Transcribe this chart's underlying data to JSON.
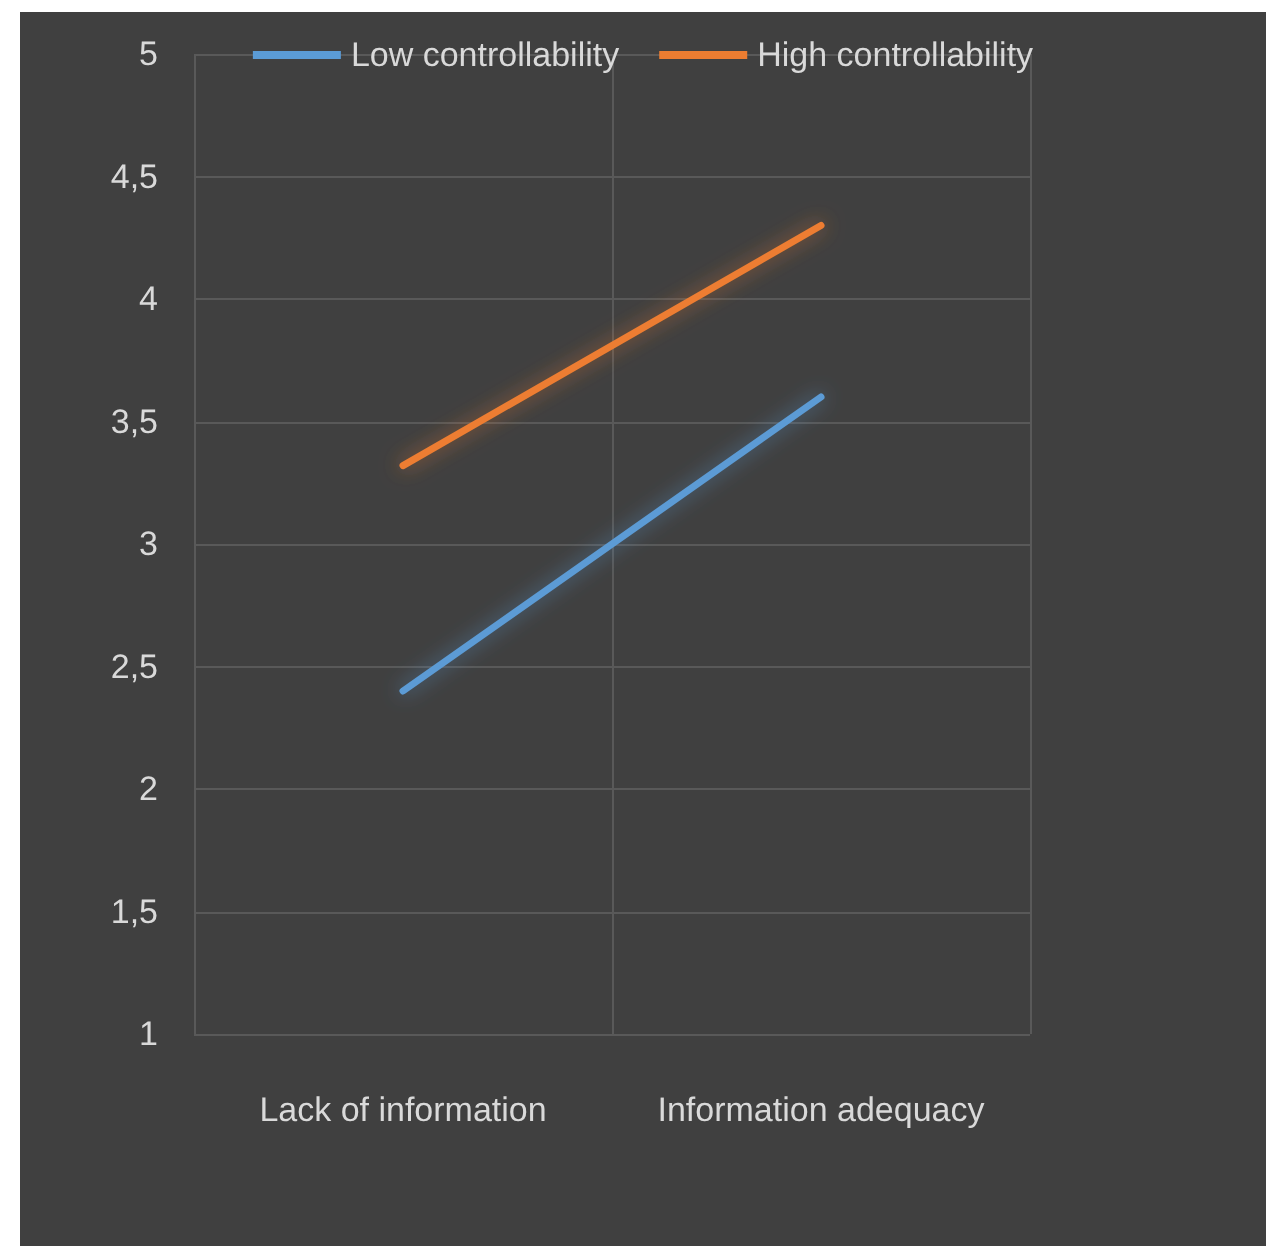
{
  "chart_data": {
    "type": "line",
    "categories": [
      "Lack of information",
      "Information adequacy"
    ],
    "series": [
      {
        "name": "Low controllability",
        "color": "#5b9bd5",
        "values": [
          2.4,
          3.6
        ]
      },
      {
        "name": "High controllability",
        "color": "#ed7d31",
        "values": [
          3.32,
          4.3
        ]
      }
    ],
    "ylim": [
      1,
      5
    ],
    "yticks": [
      1,
      {
        "value": 1.5,
        "label": "1,5"
      },
      2,
      {
        "value": 2.5,
        "label": "2,5"
      },
      3,
      {
        "value": 3.5,
        "label": "3,5"
      },
      4,
      {
        "value": 4.5,
        "label": "4,5"
      },
      5
    ],
    "grid": true,
    "legend": "top",
    "marker": "none",
    "line_style": "solid"
  }
}
